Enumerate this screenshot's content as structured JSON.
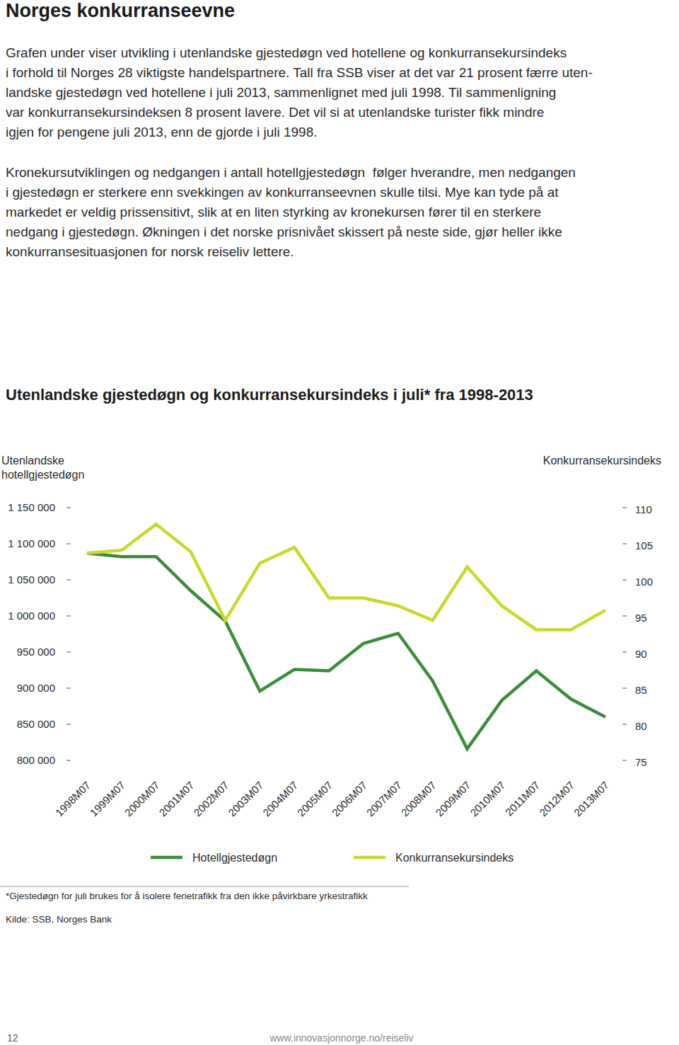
{
  "page": {
    "heading": "Norges konkurranseevne",
    "paragraphs": [
      [
        "Grafen under viser utvikling i utenlandske gjestedøgn ved hotellene og konkurransekursindeks",
        "i forhold til Norges 28 viktigste handelspartnere. Tall fra SSB viser at det var 21 prosent færre uten-",
        "landske gjestedøgn ved hotellene i juli 2013, sammenlignet med juli 1998. Til sammenligning",
        "var konkurransekursindeksen 8 prosent lavere. Det vil si at utenlandske turister fikk mindre",
        "igjen for pengene juli 2013, enn de gjorde i juli 1998."
      ],
      [
        "Kronekursutviklingen og nedgangen i antall hotellgjestedøgn  følger hverandre, men nedgangen",
        "i gjestedøgn er sterkere enn svekkingen av konkurranseevnen skulle tilsi. Mye kan tyde på at",
        "markedet er veldig prissensitivt, slik at en liten styrking av kronekursen fører til en sterkere",
        "nedgang i gjestedøgn. Økningen i det norske prisnivået skissert på neste side, gjør heller ikke",
        "konkurransesituasjonen for norsk reiseliv lettere."
      ]
    ],
    "footnote": "*Gjestedøgn for juli brukes for å isolere ferietrafikk fra den ikke påvirkbare yrkestrafikk",
    "source": "Kilde: SSB, Norges Bank",
    "page_number": "12",
    "url": "www.innovasjonnorge.no/reiseliv"
  },
  "chart_data": {
    "type": "line",
    "title": "Utenlandske gjestedøgn og konkurransekursindeks i juli* fra 1998-2013",
    "ylabel": [
      "Utenlandske",
      "hotellgjestedøgn"
    ],
    "y2label": "Konkurransekursindeks",
    "categories": [
      "1998M07",
      "1999M07",
      "2000M07",
      "2001M07",
      "2002M07",
      "2003M07",
      "2004M07",
      "2005M07",
      "2006M07",
      "2007M07",
      "2008M07",
      "2009M07",
      "2010M07",
      "2011M07",
      "2012M07",
      "2013M07"
    ],
    "series": [
      {
        "name": "Hotellgjestedøgn",
        "color": "#3b8c3b",
        "values": [
          1087000,
          1082000,
          1082000,
          1035000,
          993000,
          896000,
          926000,
          924000,
          962000,
          976000,
          910000,
          816000,
          883000,
          924000,
          885000,
          860000
        ]
      },
      {
        "name": "Konkurransekursindeks",
        "color": "#c9d82e",
        "axis": "y2",
        "values": [
          103.7,
          104.1,
          107.7,
          103.9,
          94.4,
          102.3,
          104.5,
          97.5,
          97.5,
          96.4,
          94.4,
          101.8,
          96.4,
          93.1,
          93.1,
          95.8
        ]
      }
    ],
    "ylim": [
      800000,
      1150000
    ],
    "yticks": [
      {
        "value": 800000,
        "label": "800 000"
      },
      {
        "value": 850000,
        "label": "850 000"
      },
      {
        "value": 900000,
        "label": "900 000"
      },
      {
        "value": 950000,
        "label": "950 000"
      },
      {
        "value": 1000000,
        "label": "1 000 000"
      },
      {
        "value": 1050000,
        "label": "1 050 000"
      },
      {
        "value": 1100000,
        "label": "1 100 000"
      },
      {
        "value": 1150000,
        "label": "1 150 000"
      }
    ],
    "y2lim": [
      75,
      110
    ],
    "y2ticks": [
      75,
      80,
      85,
      90,
      95,
      100,
      105,
      110
    ],
    "grid": false,
    "legend": "bottom"
  }
}
